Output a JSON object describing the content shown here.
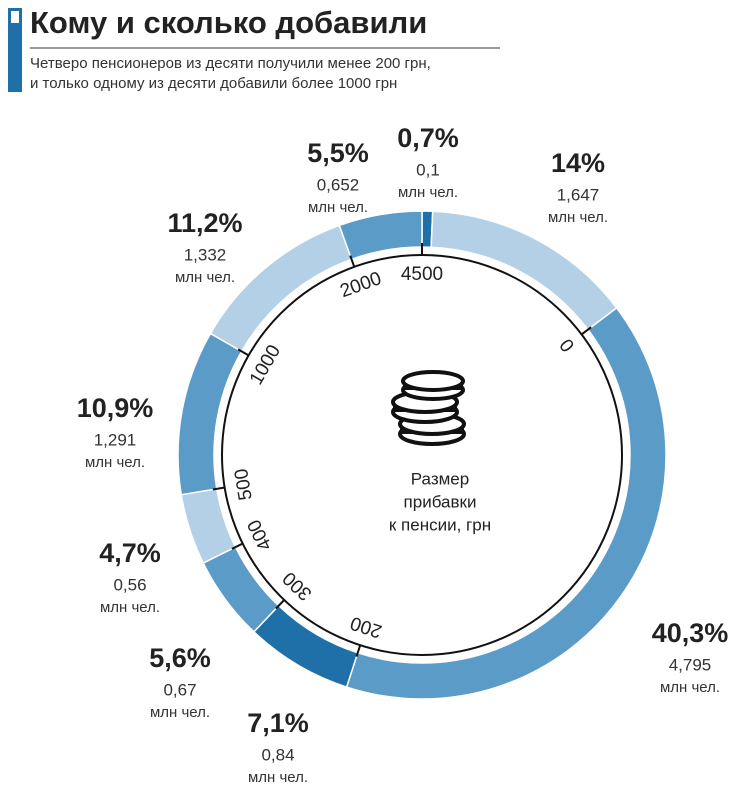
{
  "chart_data": {
    "type": "donut",
    "title": "Кому и сколько добавили",
    "subtitle": [
      "Четверо пенсионеров из десяти получили менее 200 грн,",
      "и только одному из десяти добавили более 1000 грн"
    ],
    "values": [
      0.7,
      14,
      40.3,
      7.1,
      5.6,
      4.7,
      10.9,
      11.2,
      5.5
    ],
    "value_labels": [
      "0,7%",
      "14%",
      "40,3%",
      "7,1%",
      "5,6%",
      "4,7%",
      "10,9%",
      "11,2%",
      "5,5%"
    ],
    "people": [
      0.1,
      1.647,
      4.795,
      0.84,
      0.67,
      0.56,
      1.291,
      1.332,
      0.652
    ],
    "people_labels": [
      "0,1",
      "1,647",
      "4,795",
      "0,84",
      "0,67",
      "0,56",
      "1,291",
      "1,332",
      "0,652"
    ],
    "unit": "млн чел.",
    "colors": [
      "#1f6fa8",
      "#b4d0e6",
      "#5b9bc8",
      "#1f6fa8",
      "#5b9bc8",
      "#b4d0e6",
      "#5b9bc8",
      "#b4d0e6",
      "#5b9bc8"
    ],
    "scale_ticks": [
      0,
      200,
      300,
      400,
      500,
      1000,
      2000,
      4500
    ],
    "center_label": [
      "Размер",
      "прибавки",
      "к пенсии, грн"
    ]
  }
}
